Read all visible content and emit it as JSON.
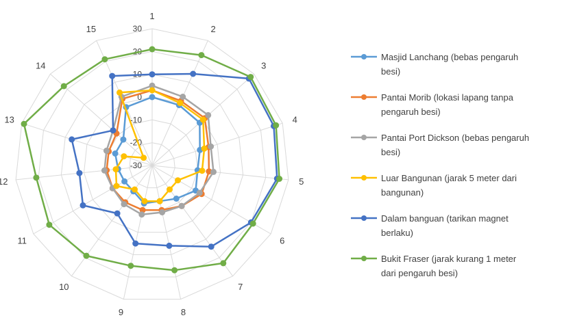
{
  "chart_data": {
    "type": "radar",
    "categories": [
      "1",
      "2",
      "3",
      "4",
      "5",
      "6",
      "7",
      "8",
      "9",
      "10",
      "11",
      "12",
      "13",
      "14",
      "15"
    ],
    "r_ticks": [
      "30",
      "20",
      "10",
      "0",
      "-10",
      "-20",
      "-30"
    ],
    "rlim": [
      -30,
      30
    ],
    "grid": true,
    "legend_position": "right",
    "series": [
      {
        "name": "Masjid Lanchang (bebas pengaruh besi)",
        "legend_lines": [
          "Masjid Lanchang (bebas pengaruh",
          "besi)"
        ],
        "color": "#5B9BD5",
        "values": [
          0,
          -1,
          -2,
          -8,
          -10,
          -8,
          -12,
          -14,
          -13,
          -16,
          -16,
          -15,
          -13,
          -13,
          -2
        ]
      },
      {
        "name": "Pantai Morib (lokasi lapang tanpa pengaruh besi)",
        "legend_lines": [
          "Pantai Morib (lokasi lapang tanpa",
          "pengaruh besi)"
        ],
        "color": "#ED7D31",
        "values": [
          3,
          1,
          1,
          -4,
          -5,
          -5,
          -8,
          -10,
          -10,
          -10,
          -10,
          -10,
          -10,
          -9,
          2
        ]
      },
      {
        "name": "Pantai Port Dickson (bebas pengaruh besi)",
        "legend_lines": [
          "Pantai Port Dickson (bebas pengaruh",
          "besi)"
        ],
        "color": "#A5A5A5",
        "values": [
          5,
          3,
          3,
          -3,
          -3,
          -6,
          -8,
          -9,
          -8,
          -9,
          -10,
          -9,
          -9,
          -7,
          3
        ]
      },
      {
        "name": "Luar Bangunan (jarak 5 meter dari bangunan)",
        "legend_lines": [
          "Luar Bangunan (jarak 5 meter dari",
          "bangunan)"
        ],
        "color": "#FFC000",
        "values": [
          3,
          0,
          0,
          -6,
          -8,
          -17,
          -17,
          -14,
          -14,
          -17,
          -12,
          -14,
          -17,
          -25,
          5
        ]
      },
      {
        "name": "Dalam banguan (tarikan magnet berlaku)",
        "legend_lines": [
          "Dalam banguan (tarikan magnet",
          "berlaku)"
        ],
        "color": "#4472C4",
        "values": [
          10,
          14,
          27,
          26,
          25,
          20,
          14,
          6,
          5,
          -4,
          5,
          2,
          7,
          -7,
          13
        ]
      },
      {
        "name": "Bukit Fraser (jarak kurang 1 meter dari pengaruh besi)",
        "legend_lines": [
          "Bukit Fraser (jarak kurang 1 meter",
          "dari pengaruh besi)"
        ],
        "color": "#70AD47",
        "values": [
          21,
          23,
          28,
          27,
          26,
          21,
          23,
          17,
          15,
          19,
          22,
          21,
          29,
          22,
          21
        ]
      }
    ]
  }
}
